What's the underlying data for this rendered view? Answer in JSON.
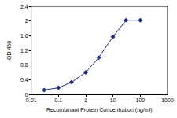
{
  "chart_data": {
    "type": "line",
    "x_label": "Recombinant Protein Concentration (ng/ml)",
    "y_label": "OD 450",
    "x": [
      0.03,
      0.1,
      0.3,
      1,
      3,
      10,
      30,
      100
    ],
    "values": [
      0.12,
      0.18,
      0.33,
      0.6,
      1.0,
      1.57,
      2.02,
      2.02
    ],
    "color": "#1f2d86",
    "marker": "diamond",
    "log": "x",
    "xlim": [
      0.01,
      1000
    ],
    "xticks": [
      0.01,
      0.1,
      1,
      10,
      100,
      1000
    ],
    "ylim": [
      0,
      2.4
    ],
    "yticks": [
      0,
      0.4,
      0.8,
      1.2,
      1.6,
      2,
      2.4
    ],
    "grid": false
  }
}
